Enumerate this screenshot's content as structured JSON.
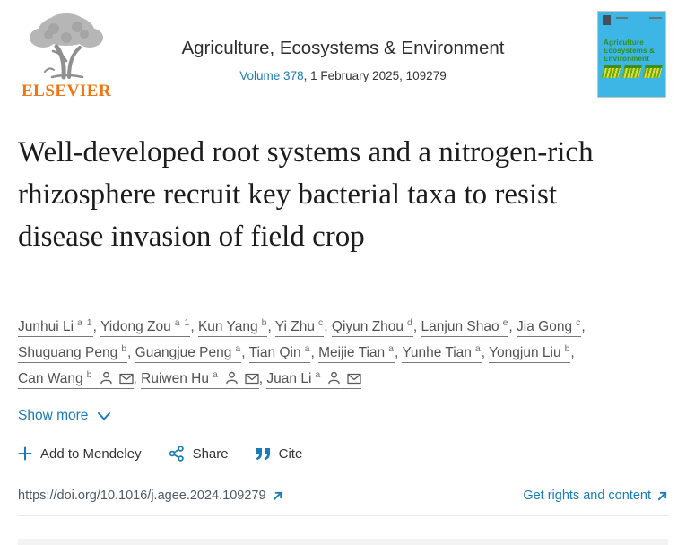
{
  "header": {
    "publisher_wordmark": "ELSEVIER",
    "journal_title": "Agriculture, Ecosystems & Environment",
    "volume_link_label": "Volume 378",
    "issue_text": ", 1 February 2025, 109279",
    "cover_title_line1": "Agriculture",
    "cover_title_line2": "Ecosystems &",
    "cover_title_line3": "Environment"
  },
  "article": {
    "title": "Well-developed root systems and a nitrogen-rich rhizosphere recruit key bacterial taxa to resist disease invasion of field crop"
  },
  "authors": {
    "list": [
      {
        "name": "Junhui Li",
        "sup": "a 1",
        "corresponding": false
      },
      {
        "name": "Yidong Zou",
        "sup": "a 1",
        "corresponding": false
      },
      {
        "name": "Kun Yang",
        "sup": "b",
        "corresponding": false
      },
      {
        "name": "Yi Zhu",
        "sup": "c",
        "corresponding": false
      },
      {
        "name": "Qiyun Zhou",
        "sup": "d",
        "corresponding": false
      },
      {
        "name": "Lanjun Shao",
        "sup": "e",
        "corresponding": false
      },
      {
        "name": "Jia Gong",
        "sup": "c",
        "corresponding": false
      },
      {
        "name": "Shuguang Peng",
        "sup": "b",
        "corresponding": false
      },
      {
        "name": "Guangjue Peng",
        "sup": "a",
        "corresponding": false
      },
      {
        "name": "Tian Qin",
        "sup": "a",
        "corresponding": false
      },
      {
        "name": "Meijie Tian",
        "sup": "a",
        "corresponding": false
      },
      {
        "name": "Yunhe Tian",
        "sup": "a",
        "corresponding": false
      },
      {
        "name": "Yongjun Liu",
        "sup": "b",
        "corresponding": false
      },
      {
        "name": "Can Wang",
        "sup": "b",
        "corresponding": true
      },
      {
        "name": "Ruiwen Hu",
        "sup": "a",
        "corresponding": true
      },
      {
        "name": "Juan Li",
        "sup": "a",
        "corresponding": true
      }
    ],
    "show_more_label": "Show more"
  },
  "actions": {
    "mendeley_label": "Add to Mendeley",
    "share_label": "Share",
    "cite_label": "Cite"
  },
  "footer": {
    "doi_text": "https://doi.org/10.1016/j.agee.2024.109279",
    "rights_label": "Get rights and content"
  },
  "colors": {
    "link_blue": "#1b7bb5",
    "elsevier_orange": "#ee7511",
    "cover_blue": "#3db6e6",
    "cover_green": "#2f8d17"
  }
}
